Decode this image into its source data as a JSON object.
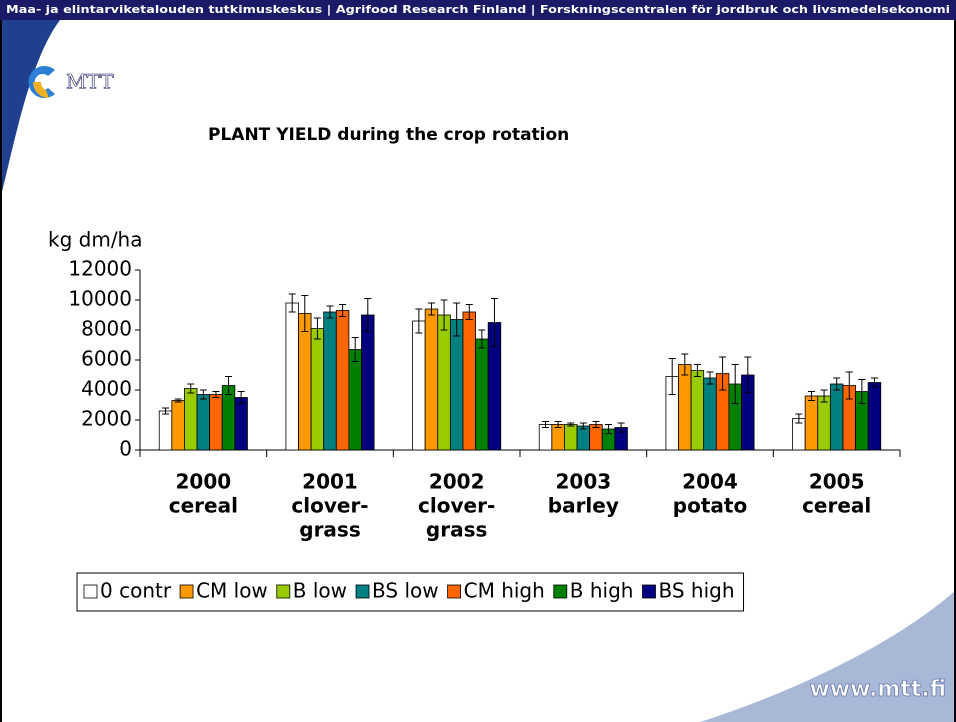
{
  "slide": {
    "header": "Maa- ja elintarviketalouden tutkimuskeskus  |  Agrifood Research Finland  |  Forskningscentralen för jordbruk och livsmedelsekonomi",
    "logo": "MTT",
    "url": "www.mtt.fi"
  },
  "chart_data": {
    "type": "bar",
    "title": "PLANT YIELD during the crop rotation",
    "y_label": "kg dm/ha",
    "categories": [
      [
        "2000",
        "cereal"
      ],
      [
        "2001",
        "clover-",
        "grass"
      ],
      [
        "2002",
        "clover-",
        "grass"
      ],
      [
        "2003",
        "barley"
      ],
      [
        "2004",
        "potato"
      ],
      [
        "2005",
        "cereal"
      ]
    ],
    "ylim": [
      0,
      12000
    ],
    "yticks": [
      0,
      2000,
      4000,
      6000,
      8000,
      10000,
      12000
    ],
    "grid": false,
    "legend": "bottom",
    "series": [
      {
        "name": "0 contr",
        "color": "#ffffff",
        "values": [
          2600,
          9800,
          8600,
          1700,
          4900,
          2100
        ],
        "errors": [
          200,
          600,
          800,
          200,
          1200,
          300
        ]
      },
      {
        "name": "CM low",
        "color": "#ff9900",
        "values": [
          3300,
          9100,
          9400,
          1700,
          5700,
          3600
        ],
        "errors": [
          100,
          1200,
          400,
          200,
          700,
          300
        ]
      },
      {
        "name": "B low",
        "color": "#99cc00",
        "values": [
          4100,
          8100,
          9000,
          1700,
          5300,
          3600
        ],
        "errors": [
          300,
          700,
          1000,
          100,
          400,
          400
        ]
      },
      {
        "name": "BS low",
        "color": "#008080",
        "values": [
          3700,
          9200,
          8700,
          1600,
          4800,
          4400
        ],
        "errors": [
          300,
          400,
          1100,
          200,
          400,
          400
        ]
      },
      {
        "name": "CM high",
        "color": "#ff6600",
        "values": [
          3700,
          9300,
          9200,
          1700,
          5100,
          4300
        ],
        "errors": [
          200,
          400,
          500,
          200,
          1100,
          900
        ]
      },
      {
        "name": "B high",
        "color": "#008000",
        "values": [
          4300,
          6700,
          7400,
          1400,
          4400,
          3900
        ],
        "errors": [
          600,
          800,
          600,
          300,
          1300,
          800
        ]
      },
      {
        "name": "BS high",
        "color": "#000080",
        "values": [
          3500,
          9000,
          8500,
          1500,
          5000,
          4500
        ],
        "errors": [
          400,
          1100,
          1600,
          300,
          1200,
          300
        ]
      }
    ]
  }
}
